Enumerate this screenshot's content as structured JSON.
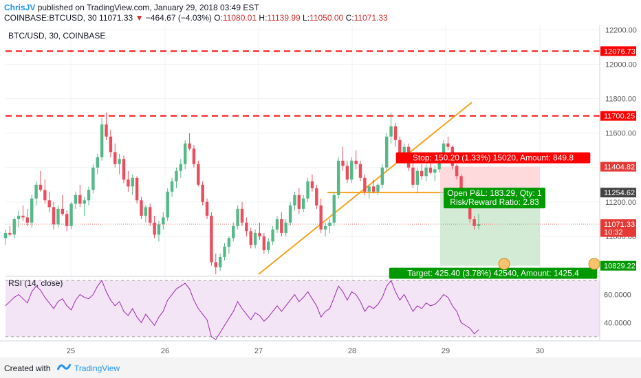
{
  "header": {
    "author": "ChrisJV",
    "published": "published on TradingView.com, January 29, 2018 03:49 EST",
    "symbol": "COINBASE:BTCUSD, 30",
    "last": "11071.33",
    "arrow": "▼",
    "change": "−464.67 (−4.03%)",
    "o_label": "O:",
    "o_value": "11080.01",
    "h_label": "H:",
    "h_value": "11139.99",
    "l_label": "L:",
    "l_value": "11050.00",
    "c_label": "C:",
    "c_value": "11071.33"
  },
  "footer": {
    "created": "Created with",
    "brand": "TradingView"
  },
  "colors": {
    "bull": "#26a69a",
    "bear": "#ef5350",
    "candle_bull": "#53b987",
    "candle_bear": "#eb4d5c",
    "resistance": "#ff0000",
    "trend": "#f7a21b",
    "rsi": "#9c27b0",
    "stop": "#ff0000",
    "target": "#009900",
    "rsi_bg": "#f3e5f5"
  },
  "chart_data": {
    "type": "candlestick",
    "title": "BTC/USD, 30, COINBASE",
    "ylim": [
      10780,
      12230
    ],
    "y_ticks": [
      "12200.00",
      "12000.00",
      "11800.00",
      "11600.00",
      "11400.00",
      "11200.00",
      "11000.00"
    ],
    "x_ticks": [
      "25",
      "26",
      "27",
      "28",
      "29",
      "30"
    ],
    "resistance_levels": [
      {
        "value": 12076.73,
        "label": "12076.73"
      },
      {
        "value": 11700.25,
        "label": "11700.25"
      }
    ],
    "price_labels": [
      {
        "value": 11404.82,
        "label": "11404.82",
        "color": "#e53935"
      },
      {
        "value": 11254.62,
        "label": "11254.62",
        "color": "#444444"
      },
      {
        "value": 11071.33,
        "label": "11071.33",
        "color": "#e53935"
      },
      {
        "value": 11025,
        "label": "10:32",
        "color": "#e53935"
      },
      {
        "value": 10829.22,
        "label": "10829.22",
        "color": "#009900"
      }
    ],
    "position": {
      "entry": 11254.62,
      "stop": 11404.82,
      "target": 10829.22,
      "stop_text": "Stop: 150.20 (1.33%) 15020, Amount: 849.8",
      "pnl_text": "Open P&L: 183.29, Qty: 1",
      "rr_text": "Risk/Reward Ratio: 2.83",
      "target_text": "Target: 425.40 (3.78%) 42540, Amount: 1425.4"
    },
    "candles": [
      [
        10990,
        11040,
        10950,
        11020
      ],
      [
        11020,
        11060,
        11000,
        11010
      ],
      [
        11010,
        11110,
        10990,
        11100
      ],
      [
        11100,
        11150,
        11050,
        11120
      ],
      [
        11120,
        11180,
        11090,
        11110
      ],
      [
        11110,
        11160,
        11060,
        11080
      ],
      [
        11080,
        11240,
        11050,
        11220
      ],
      [
        11220,
        11320,
        11180,
        11300
      ],
      [
        11300,
        11380,
        11260,
        11270
      ],
      [
        11270,
        11330,
        11190,
        11210
      ],
      [
        11210,
        11260,
        11140,
        11170
      ],
      [
        11170,
        11200,
        11040,
        11070
      ],
      [
        11070,
        11180,
        11050,
        11160
      ],
      [
        11160,
        11240,
        11120,
        11130
      ],
      [
        11130,
        11150,
        11030,
        11060
      ],
      [
        11060,
        11200,
        11040,
        11190
      ],
      [
        11190,
        11260,
        11160,
        11240
      ],
      [
        11240,
        11300,
        11170,
        11190
      ],
      [
        11190,
        11230,
        11120,
        11210
      ],
      [
        11210,
        11290,
        11180,
        11270
      ],
      [
        11270,
        11420,
        11250,
        11400
      ],
      [
        11400,
        11480,
        11360,
        11460
      ],
      [
        11460,
        11690,
        11440,
        11650
      ],
      [
        11650,
        11720,
        11560,
        11580
      ],
      [
        11580,
        11620,
        11460,
        11490
      ],
      [
        11490,
        11540,
        11400,
        11420
      ],
      [
        11420,
        11480,
        11360,
        11450
      ],
      [
        11450,
        11470,
        11310,
        11330
      ],
      [
        11330,
        11380,
        11260,
        11290
      ],
      [
        11290,
        11360,
        11240,
        11340
      ],
      [
        11340,
        11350,
        11190,
        11210
      ],
      [
        11210,
        11230,
        11100,
        11120
      ],
      [
        11120,
        11180,
        11080,
        11170
      ],
      [
        11170,
        11190,
        11060,
        11080
      ],
      [
        11080,
        11120,
        10990,
        11010
      ],
      [
        11010,
        11090,
        10970,
        11070
      ],
      [
        11070,
        11140,
        11040,
        11110
      ],
      [
        11110,
        11280,
        11090,
        11260
      ],
      [
        11260,
        11340,
        11230,
        11320
      ],
      [
        11320,
        11400,
        11280,
        11380
      ],
      [
        11380,
        11450,
        11340,
        11420
      ],
      [
        11420,
        11560,
        11390,
        11540
      ],
      [
        11540,
        11600,
        11500,
        11510
      ],
      [
        11510,
        11530,
        11400,
        11420
      ],
      [
        11420,
        11440,
        11290,
        11300
      ],
      [
        11300,
        11320,
        11180,
        11200
      ],
      [
        11200,
        11220,
        11100,
        11120
      ],
      [
        11120,
        11140,
        10830,
        10850
      ],
      [
        10850,
        10900,
        10780,
        10820
      ],
      [
        10820,
        10900,
        10800,
        10880
      ],
      [
        10880,
        10960,
        10860,
        10940
      ],
      [
        10940,
        11000,
        10900,
        10990
      ],
      [
        10990,
        11080,
        10970,
        11060
      ],
      [
        11060,
        11180,
        11040,
        11160
      ],
      [
        11160,
        11200,
        11060,
        11080
      ],
      [
        11080,
        11110,
        11000,
        11030
      ],
      [
        11030,
        11050,
        10930,
        10950
      ],
      [
        10950,
        11040,
        10930,
        11020
      ],
      [
        11020,
        11080,
        10980,
        11000
      ],
      [
        11000,
        11020,
        10900,
        10920
      ],
      [
        10920,
        10990,
        10900,
        10970
      ],
      [
        10970,
        11060,
        10950,
        11040
      ],
      [
        11040,
        11120,
        11020,
        11100
      ],
      [
        11100,
        11140,
        11000,
        11020
      ],
      [
        11020,
        11100,
        11000,
        11080
      ],
      [
        11080,
        11200,
        11060,
        11180
      ],
      [
        11180,
        11260,
        11150,
        11240
      ],
      [
        11240,
        11280,
        11130,
        11160
      ],
      [
        11160,
        11240,
        11140,
        11220
      ],
      [
        11220,
        11340,
        11200,
        11320
      ],
      [
        11320,
        11360,
        11260,
        11280
      ],
      [
        11280,
        11300,
        11160,
        11180
      ],
      [
        11180,
        11220,
        11020,
        11040
      ],
      [
        11040,
        11080,
        11000,
        11060
      ],
      [
        11060,
        11100,
        11020,
        11080
      ],
      [
        11080,
        11260,
        11060,
        11240
      ],
      [
        11240,
        11460,
        11220,
        11440
      ],
      [
        11440,
        11520,
        11380,
        11410
      ],
      [
        11410,
        11440,
        11310,
        11330
      ],
      [
        11330,
        11460,
        11310,
        11440
      ],
      [
        11440,
        11500,
        11390,
        11420
      ],
      [
        11420,
        11440,
        11320,
        11340
      ],
      [
        11340,
        11360,
        11240,
        11260
      ],
      [
        11260,
        11300,
        11220,
        11290
      ],
      [
        11290,
        11330,
        11250,
        11260
      ],
      [
        11260,
        11310,
        11240,
        11300
      ],
      [
        11300,
        11420,
        11280,
        11400
      ],
      [
        11400,
        11600,
        11380,
        11580
      ],
      [
        11580,
        11720,
        11540,
        11640
      ],
      [
        11640,
        11660,
        11520,
        11560
      ],
      [
        11560,
        11580,
        11460,
        11480
      ],
      [
        11480,
        11540,
        11420,
        11520
      ],
      [
        11520,
        11540,
        11380,
        11400
      ],
      [
        11400,
        11440,
        11280,
        11300
      ],
      [
        11300,
        11400,
        11250,
        11380
      ],
      [
        11380,
        11420,
        11330,
        11350
      ],
      [
        11350,
        11420,
        11320,
        11400
      ],
      [
        11400,
        11440,
        11360,
        11370
      ],
      [
        11370,
        11410,
        11320,
        11390
      ],
      [
        11390,
        11460,
        11370,
        11450
      ],
      [
        11450,
        11560,
        11430,
        11540
      ],
      [
        11540,
        11580,
        11500,
        11520
      ],
      [
        11520,
        11530,
        11390,
        11410
      ],
      [
        11410,
        11420,
        11330,
        11350
      ],
      [
        11350,
        11360,
        11250,
        11270
      ],
      [
        11270,
        11280,
        11180,
        11200
      ],
      [
        11200,
        11220,
        11080,
        11100
      ],
      [
        11100,
        11120,
        11040,
        11060
      ],
      [
        11060,
        11130,
        11040,
        11071
      ]
    ],
    "indicator": {
      "name": "RSI (14, close)",
      "ylim": [
        27,
        73
      ],
      "y_ticks": [
        "60.0000",
        "40.0000"
      ],
      "band": [
        30,
        70
      ],
      "values": [
        52,
        55,
        58,
        60,
        57,
        54,
        62,
        66,
        63,
        58,
        54,
        50,
        55,
        57,
        52,
        49,
        56,
        60,
        58,
        57,
        60,
        66,
        70,
        62,
        56,
        52,
        55,
        48,
        45,
        50,
        44,
        40,
        46,
        42,
        38,
        44,
        48,
        56,
        60,
        64,
        66,
        68,
        64,
        56,
        50,
        46,
        42,
        30,
        28,
        33,
        38,
        43,
        48,
        55,
        50,
        46,
        42,
        47,
        45,
        41,
        44,
        48,
        52,
        48,
        52,
        56,
        60,
        55,
        58,
        62,
        57,
        52,
        44,
        48,
        50,
        58,
        66,
        62,
        56,
        62,
        60,
        55,
        48,
        52,
        50,
        53,
        58,
        66,
        70,
        62,
        56,
        60,
        54,
        48,
        52,
        50,
        54,
        52,
        53,
        56,
        60,
        58,
        52,
        48,
        40,
        38,
        36,
        32,
        35
      ]
    }
  }
}
